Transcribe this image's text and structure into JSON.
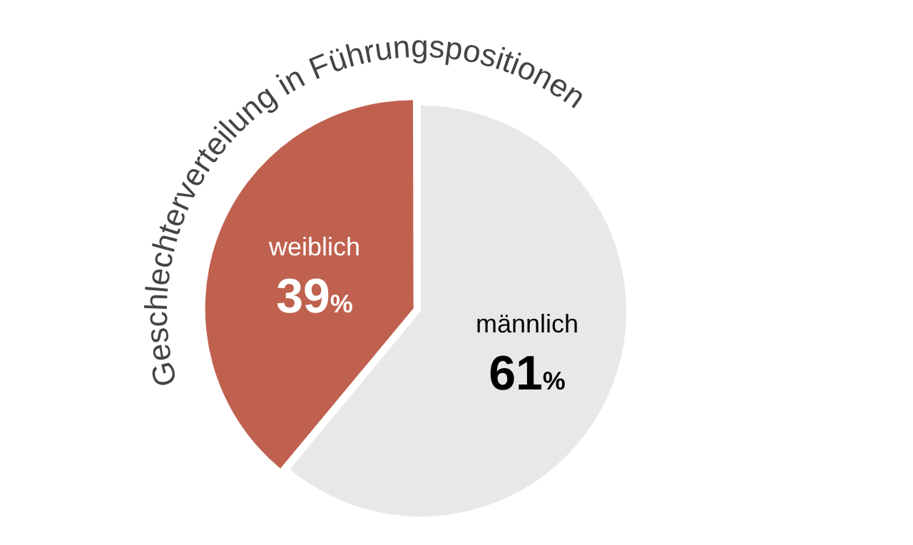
{
  "chart_data": {
    "type": "pie",
    "title": "Geschlechterverteilung in Führungspositionen",
    "categories": [
      "männlich",
      "weiblich"
    ],
    "values": [
      61,
      39
    ],
    "colors": [
      "#e8e8e8",
      "#c0614f"
    ],
    "value_labels": [
      "61%",
      "39%"
    ],
    "legend": false
  }
}
